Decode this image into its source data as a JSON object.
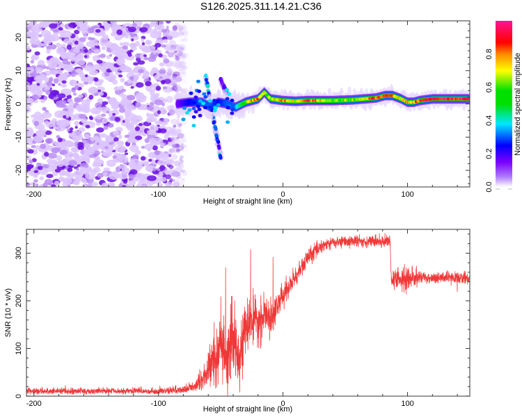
{
  "title": "S126.2025.311.14.21.C36",
  "chart_data": [
    {
      "type": "heatmap",
      "title": "S126.2025.311.14.21.C36",
      "xlabel": "Height of straight line (km)",
      "ylabel": "Frequency (Hz)",
      "xlim": [
        -206,
        150
      ],
      "ylim": [
        -25,
        25
      ],
      "xticks": [
        -200,
        -100,
        0,
        100
      ],
      "xtick_labels": [
        "-200",
        "-100",
        "0",
        "100"
      ],
      "yticks": [
        -20,
        -10,
        0,
        10,
        20
      ],
      "ytick_labels": [
        "-20",
        "-10",
        "0",
        "10",
        "20"
      ],
      "colorbar": {
        "label": "Normalized spectral amplitude",
        "range": [
          0,
          1
        ],
        "ticks": [
          0.0,
          0.2,
          0.4,
          0.6,
          0.8
        ],
        "tick_labels": [
          "0.0",
          "0.2",
          "0.4",
          "0.6",
          "0.8"
        ],
        "colors": [
          "#ffffff",
          "#d9b3ff",
          "#8a2be2",
          "#0000ff",
          "#00e5ff",
          "#00e000",
          "#ffff00",
          "#ff0000",
          "#ff1493"
        ]
      },
      "noise_region_x": [
        -206,
        -85
      ],
      "noise_amplitude_range": [
        0.02,
        0.15
      ],
      "ridge": {
        "x": [
          -85,
          -75,
          -65,
          -58,
          -52,
          -45,
          -38,
          -30,
          -25,
          -20,
          -15,
          -10,
          0,
          10,
          20,
          40,
          55,
          65,
          75,
          82,
          88,
          95,
          100,
          105,
          110,
          120,
          135,
          150
        ],
        "freq": [
          0.0,
          0.5,
          0.5,
          -1.0,
          0.5,
          0.0,
          -1.0,
          0.5,
          1.0,
          1.5,
          3.5,
          1.5,
          1.0,
          0.8,
          1.0,
          1.0,
          1.2,
          1.5,
          1.8,
          2.5,
          2.5,
          1.5,
          0.5,
          0.5,
          1.0,
          1.5,
          1.5,
          1.5
        ],
        "amplitude": [
          0.15,
          0.25,
          0.3,
          0.3,
          0.25,
          0.3,
          0.35,
          0.55,
          0.8,
          0.85,
          0.75,
          0.6,
          0.85,
          0.7,
          0.9,
          0.6,
          0.65,
          0.7,
          0.9,
          0.9,
          0.85,
          0.7,
          0.8,
          0.75,
          0.9,
          0.95,
          0.95,
          0.9
        ]
      },
      "streaks": [
        {
          "x0": -62,
          "f0": 8,
          "x1": -50,
          "f1": -16,
          "amplitude": 0.3
        },
        {
          "x0": -50,
          "f0": 7,
          "x1": -38,
          "f1": -2,
          "amplitude": 0.15
        }
      ]
    },
    {
      "type": "line",
      "xlabel": "Height of straight line (km)",
      "ylabel": "SNR (10 * v/v)",
      "xlim": [
        -206,
        150
      ],
      "ylim": [
        0,
        350
      ],
      "xticks": [
        -200,
        -100,
        0,
        100
      ],
      "xtick_labels": [
        "-200",
        "-100",
        "0",
        "100"
      ],
      "yticks": [
        0,
        100,
        200,
        300
      ],
      "ytick_labels": [
        "0",
        "100",
        "200",
        "300"
      ],
      "series": [
        {
          "name": "SNR",
          "color": "#ee2222",
          "x": [
            -206,
            -150,
            -100,
            -80,
            -70,
            -62,
            -55,
            -50,
            -45,
            -40,
            -35,
            -30,
            -25,
            -20,
            -15,
            -10,
            -5,
            0,
            10,
            20,
            30,
            40,
            50,
            60,
            70,
            80,
            86,
            87,
            90,
            100,
            110,
            120,
            130,
            150
          ],
          "mean": [
            10,
            10,
            12,
            15,
            25,
            50,
            80,
            110,
            60,
            120,
            90,
            140,
            160,
            150,
            170,
            160,
            190,
            210,
            250,
            290,
            315,
            322,
            325,
            325,
            325,
            325,
            328,
            240,
            245,
            245,
            250,
            248,
            248,
            248
          ],
          "noise": [
            8,
            8,
            8,
            10,
            15,
            30,
            70,
            90,
            70,
            80,
            60,
            50,
            50,
            45,
            40,
            35,
            30,
            25,
            20,
            18,
            15,
            12,
            12,
            12,
            12,
            12,
            12,
            20,
            25,
            30,
            12,
            12,
            12,
            12
          ],
          "peaks": [
            {
              "x": -46,
              "value": 270
            },
            {
              "x": -26,
              "value": 308
            },
            {
              "x": -8,
              "value": 292
            },
            {
              "x": 108,
              "value": 183
            },
            {
              "x": 108,
              "value": 257
            }
          ]
        }
      ]
    }
  ]
}
